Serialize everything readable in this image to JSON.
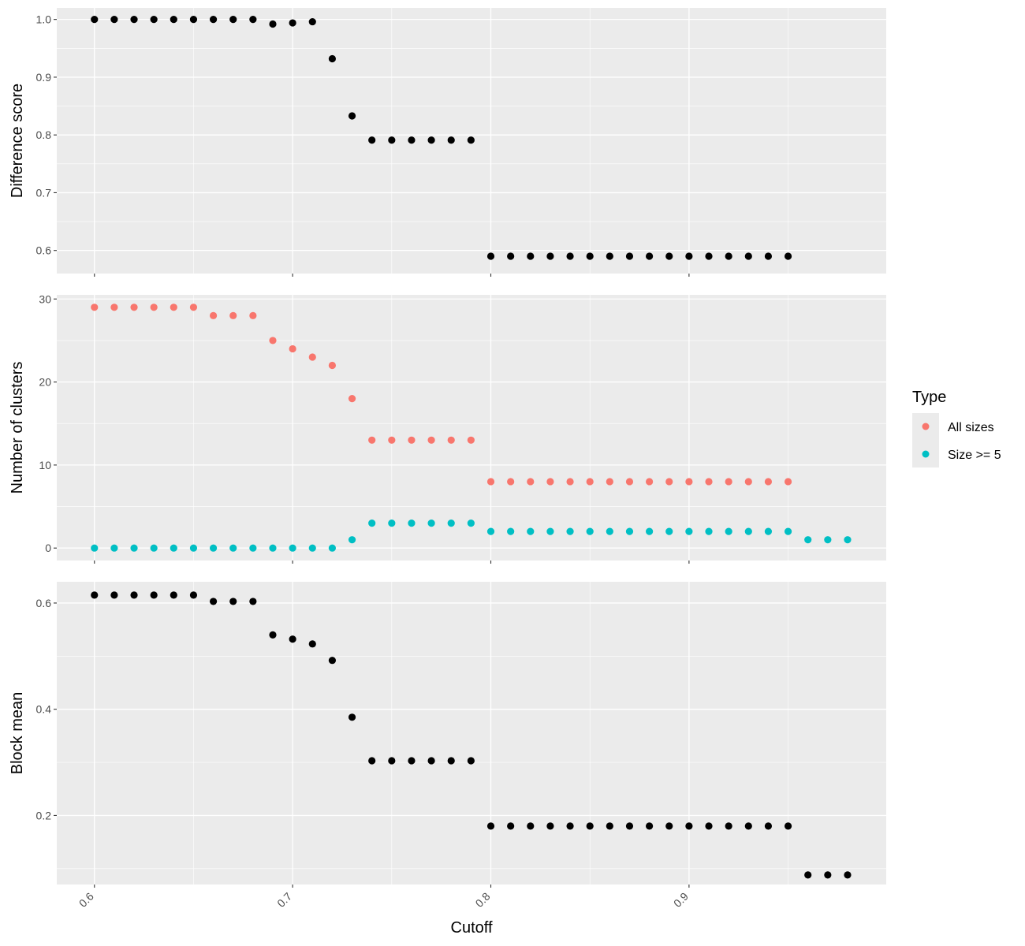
{
  "chart_data": [
    {
      "type": "scatter",
      "ylabel": "Difference score",
      "ylim": [
        0.56,
        1.02
      ],
      "yticks": [
        0.6,
        0.7,
        0.8,
        0.9,
        1.0
      ],
      "ytick_labels": [
        "0.6",
        "0.7",
        "0.8",
        "0.9",
        "1.0"
      ],
      "series": [
        {
          "color": "#000000",
          "x": [
            0.6,
            0.61,
            0.62,
            0.63,
            0.64,
            0.65,
            0.66,
            0.67,
            0.68,
            0.69,
            0.7,
            0.71,
            0.72,
            0.73,
            0.74,
            0.75,
            0.76,
            0.77,
            0.78,
            0.79,
            0.8,
            0.81,
            0.82,
            0.83,
            0.84,
            0.85,
            0.86,
            0.87,
            0.88,
            0.89,
            0.9,
            0.91,
            0.92,
            0.93,
            0.94,
            0.95
          ],
          "y": [
            1.0,
            1.0,
            1.0,
            1.0,
            1.0,
            1.0,
            1.0,
            1.0,
            1.0,
            0.992,
            0.994,
            0.996,
            0.932,
            0.833,
            0.791,
            0.791,
            0.791,
            0.791,
            0.791,
            0.791,
            0.59,
            0.59,
            0.59,
            0.59,
            0.59,
            0.59,
            0.59,
            0.59,
            0.59,
            0.59,
            0.59,
            0.59,
            0.59,
            0.59,
            0.59,
            0.59
          ]
        }
      ]
    },
    {
      "type": "scatter",
      "ylabel": "Number of clusters",
      "ylim": [
        -1.5,
        30.5
      ],
      "yticks": [
        0,
        10,
        20,
        30
      ],
      "ytick_labels": [
        "0",
        "10",
        "20",
        "30"
      ],
      "series": [
        {
          "name": "All sizes",
          "color": "#F8766D",
          "x": [
            0.6,
            0.61,
            0.62,
            0.63,
            0.64,
            0.65,
            0.66,
            0.67,
            0.68,
            0.69,
            0.7,
            0.71,
            0.72,
            0.73,
            0.74,
            0.75,
            0.76,
            0.77,
            0.78,
            0.79,
            0.8,
            0.81,
            0.82,
            0.83,
            0.84,
            0.85,
            0.86,
            0.87,
            0.88,
            0.89,
            0.9,
            0.91,
            0.92,
            0.93,
            0.94,
            0.95
          ],
          "y": [
            29,
            29,
            29,
            29,
            29,
            29,
            28,
            28,
            28,
            25,
            24,
            23,
            22,
            18,
            13,
            13,
            13,
            13,
            13,
            13,
            8,
            8,
            8,
            8,
            8,
            8,
            8,
            8,
            8,
            8,
            8,
            8,
            8,
            8,
            8,
            8
          ]
        },
        {
          "name": "Size >= 5",
          "color": "#00BFC4",
          "x": [
            0.6,
            0.61,
            0.62,
            0.63,
            0.64,
            0.65,
            0.66,
            0.67,
            0.68,
            0.69,
            0.7,
            0.71,
            0.72,
            0.73,
            0.74,
            0.75,
            0.76,
            0.77,
            0.78,
            0.79,
            0.8,
            0.81,
            0.82,
            0.83,
            0.84,
            0.85,
            0.86,
            0.87,
            0.88,
            0.89,
            0.9,
            0.91,
            0.92,
            0.93,
            0.94,
            0.95,
            0.96,
            0.97,
            0.98
          ],
          "y": [
            0,
            0,
            0,
            0,
            0,
            0,
            0,
            0,
            0,
            0,
            0,
            0,
            0,
            1,
            3,
            3,
            3,
            3,
            3,
            3,
            2,
            2,
            2,
            2,
            2,
            2,
            2,
            2,
            2,
            2,
            2,
            2,
            2,
            2,
            2,
            2,
            1,
            1,
            1
          ]
        }
      ]
    },
    {
      "type": "scatter",
      "ylabel": "Block mean",
      "ylim": [
        0.07,
        0.64
      ],
      "yticks": [
        0.2,
        0.4,
        0.6
      ],
      "ytick_labels": [
        "0.2",
        "0.4",
        "0.6"
      ],
      "series": [
        {
          "color": "#000000",
          "x": [
            0.6,
            0.61,
            0.62,
            0.63,
            0.64,
            0.65,
            0.66,
            0.67,
            0.68,
            0.69,
            0.7,
            0.71,
            0.72,
            0.73,
            0.74,
            0.75,
            0.76,
            0.77,
            0.78,
            0.79,
            0.8,
            0.81,
            0.82,
            0.83,
            0.84,
            0.85,
            0.86,
            0.87,
            0.88,
            0.89,
            0.9,
            0.91,
            0.92,
            0.93,
            0.94,
            0.95,
            0.96,
            0.97,
            0.98
          ],
          "y": [
            0.615,
            0.615,
            0.615,
            0.615,
            0.615,
            0.615,
            0.603,
            0.603,
            0.603,
            0.54,
            0.532,
            0.523,
            0.492,
            0.385,
            0.303,
            0.303,
            0.303,
            0.303,
            0.303,
            0.303,
            0.18,
            0.18,
            0.18,
            0.18,
            0.18,
            0.18,
            0.18,
            0.18,
            0.18,
            0.18,
            0.18,
            0.18,
            0.18,
            0.18,
            0.18,
            0.18,
            0.088,
            0.088,
            0.088
          ]
        }
      ]
    }
  ],
  "x_axis": {
    "title": "Cutoff",
    "xlim": [
      0.581,
      0.9995
    ],
    "ticks": [
      0.6,
      0.7,
      0.8,
      0.9
    ],
    "tick_labels": [
      "0.6",
      "0.7",
      "0.8",
      "0.9"
    ]
  },
  "legend": {
    "title": "Type",
    "placement": "right",
    "items": [
      {
        "label": "All sizes",
        "color": "#F8766D"
      },
      {
        "label": "Size >= 5",
        "color": "#00BFC4"
      }
    ]
  },
  "panel_background": "#EBEBEB",
  "grid": true
}
